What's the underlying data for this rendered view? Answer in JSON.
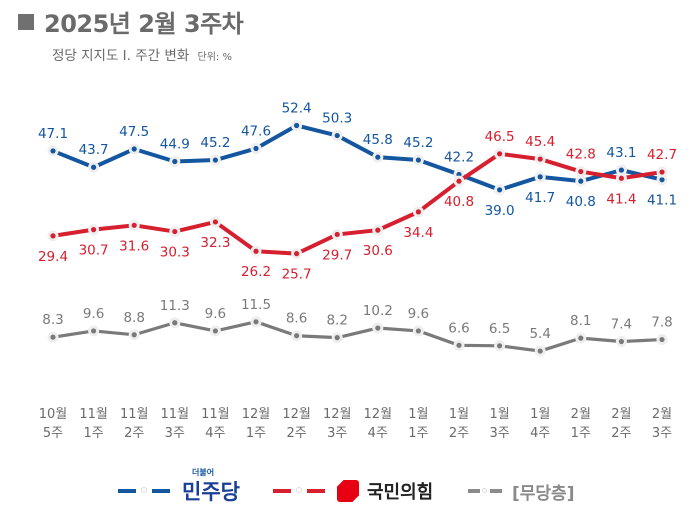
{
  "header": {
    "title": "2025년 2월 3주차",
    "subtitle": "정당 지지도  Ⅰ. 주간 변화",
    "unit": "단위: %"
  },
  "colors": {
    "democratic": "#1456a0",
    "ppp": "#d6202f",
    "independent": "#7a7a7a",
    "title": "#6a6a6a"
  },
  "chart_data": {
    "type": "line",
    "title": "정당 지지도 Ⅰ. 주간 변화",
    "ylabel": "단위: %",
    "grid": false,
    "legend_position": "bottom",
    "categories": [
      [
        "10월",
        "5주"
      ],
      [
        "11월",
        "1주"
      ],
      [
        "11월",
        "2주"
      ],
      [
        "11월",
        "3주"
      ],
      [
        "11월",
        "4주"
      ],
      [
        "12월",
        "1주"
      ],
      [
        "12월",
        "2주"
      ],
      [
        "12월",
        "3주"
      ],
      [
        "12월",
        "4주"
      ],
      [
        "1월",
        "1주"
      ],
      [
        "1월",
        "2주"
      ],
      [
        "1월",
        "3주"
      ],
      [
        "1월",
        "4주"
      ],
      [
        "2월",
        "1주"
      ],
      [
        "2월",
        "2주"
      ],
      [
        "2월",
        "3주"
      ]
    ],
    "series": [
      {
        "name": "민주당",
        "key": "democratic",
        "values": [
          47.1,
          43.7,
          47.5,
          44.9,
          45.2,
          47.6,
          52.4,
          50.3,
          45.8,
          45.2,
          42.2,
          39.0,
          41.7,
          40.8,
          43.1,
          41.1
        ],
        "labels": [
          "47.1",
          "43.7",
          "47.5",
          "44.9",
          "45.2",
          "47.6",
          "52.4",
          "50.3",
          "45.8",
          "45.2",
          "42.2",
          "39.0",
          "41.7",
          "40.8",
          "43.1",
          "41.1"
        ],
        "label_pos": [
          "above",
          "above",
          "above",
          "above",
          "above",
          "above",
          "above",
          "above",
          "above",
          "above",
          "above",
          "below",
          "below",
          "below",
          "above",
          "below"
        ]
      },
      {
        "name": "국민의힘",
        "key": "ppp",
        "values": [
          29.4,
          30.7,
          31.6,
          30.3,
          32.3,
          26.2,
          25.7,
          29.7,
          30.6,
          34.4,
          40.8,
          46.5,
          45.4,
          42.8,
          41.4,
          42.7
        ],
        "labels": [
          "29.4",
          "30.7",
          "31.6",
          "30.3",
          "32.3",
          "26.2",
          "25.7",
          "29.7",
          "30.6",
          "34.4",
          "40.8",
          "46.5",
          "45.4",
          "42.8",
          "41.4",
          "42.7"
        ],
        "label_pos": [
          "below",
          "below",
          "below",
          "below",
          "below",
          "below",
          "below",
          "below",
          "below",
          "below",
          "below",
          "above",
          "above",
          "above",
          "below",
          "above"
        ]
      },
      {
        "name": "[무당층]",
        "key": "independent",
        "values": [
          8.3,
          9.6,
          8.8,
          11.3,
          9.6,
          11.5,
          8.6,
          8.2,
          10.2,
          9.6,
          6.6,
          6.5,
          5.4,
          8.1,
          7.4,
          7.8
        ],
        "labels": [
          "8.3",
          "9.6",
          "8.8",
          "11.3",
          "9.6",
          "11.5",
          "8.6",
          "8.2",
          "10.2",
          "9.6",
          "6.6",
          "6.5",
          "5.4",
          "8.1",
          "7.4",
          "7.8"
        ],
        "label_pos": [
          "above",
          "above",
          "above",
          "above",
          "above",
          "above",
          "above",
          "above",
          "above",
          "above",
          "above",
          "above",
          "above",
          "above",
          "above",
          "above"
        ]
      }
    ]
  },
  "legend": {
    "democratic_label": "민주당",
    "democratic_logo_small": "더불어",
    "ppp_label": "국민의힘",
    "independent_label": "[무당층]"
  }
}
